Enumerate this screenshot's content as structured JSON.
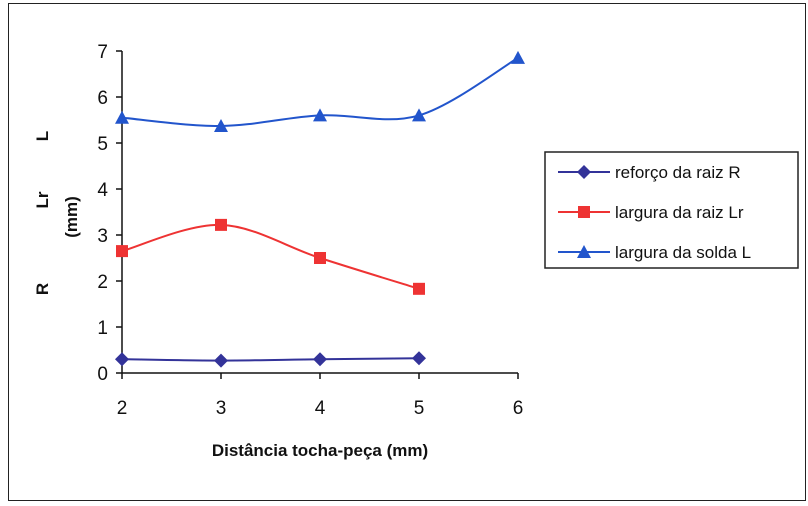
{
  "chart_data": {
    "type": "line",
    "x": [
      2,
      3,
      4,
      5,
      6
    ],
    "series": [
      {
        "name": "reforço da raiz R",
        "color": "#333399",
        "marker": "diamond",
        "values": [
          0.3,
          0.27,
          0.3,
          0.32,
          null
        ]
      },
      {
        "name": "largura da raiz Lr",
        "color": "#ee3333",
        "marker": "square",
        "values": [
          2.65,
          3.22,
          2.5,
          1.83,
          null
        ]
      },
      {
        "name": "largura da solda L",
        "color": "#2255cc",
        "marker": "triangle",
        "values": [
          5.55,
          5.37,
          5.6,
          5.6,
          6.85
        ]
      }
    ],
    "xlabel": "Distância tocha-peça (mm)",
    "ylabel_parts": {
      "L": "L",
      "Lr": "Lr",
      "unit": "(mm)",
      "R": "R"
    },
    "xlim": [
      2,
      6
    ],
    "ylim": [
      0,
      7
    ],
    "x_ticks": [
      "2",
      "3",
      "4",
      "5",
      "6"
    ],
    "y_ticks": [
      "0",
      "1",
      "2",
      "3",
      "4",
      "5",
      "6",
      "7"
    ],
    "grid": false,
    "legend_position": "right"
  }
}
